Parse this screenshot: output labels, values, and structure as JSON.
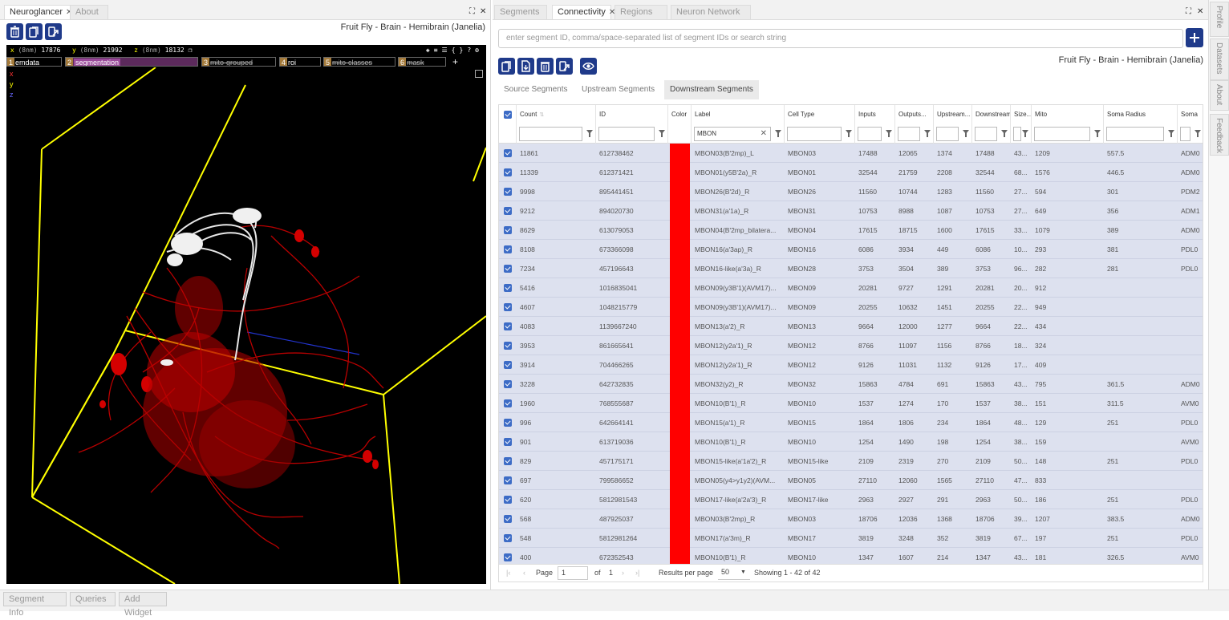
{
  "left": {
    "tabs": [
      {
        "label": "Neuroglancer",
        "active": true,
        "closable": true
      },
      {
        "label": "About",
        "active": false,
        "closable": false
      }
    ],
    "toolbar": [
      "trash-icon",
      "copy-icon",
      "share-icon"
    ],
    "dataset_title": "Fruit Fly - Brain - Hemibrain (Janelia)",
    "coords": {
      "x_label": "x",
      "x_unit": "(8nm)",
      "x_value": "17876",
      "y_label": "y",
      "y_unit": "(8nm)",
      "y_value": "21992",
      "z_label": "z",
      "z_unit": "(8nm)",
      "z_value": "18132"
    },
    "layers": [
      {
        "num": "1",
        "label": "emdata",
        "visible": true,
        "selected": false
      },
      {
        "num": "2",
        "label": "segmentation",
        "visible": true,
        "selected": true
      },
      {
        "num": "3",
        "label": "mito-grouped",
        "visible": false,
        "selected": false
      },
      {
        "num": "4",
        "label": "roi",
        "visible": true,
        "selected": false
      },
      {
        "num": "5",
        "label": "mito-classes",
        "visible": false,
        "selected": false
      },
      {
        "num": "6",
        "label": "mask",
        "visible": false,
        "selected": false
      }
    ],
    "add_layer": "+",
    "axes": {
      "x": "x",
      "y": "y",
      "z": "z"
    },
    "colors": {
      "bounding_box": "#ffff00",
      "neuron_red": "#d40000",
      "neuron_white": "#e8e8e8",
      "toolbar_blue": "#1f3a8a"
    }
  },
  "right": {
    "tabs": [
      {
        "label": "Segments",
        "active": false
      },
      {
        "label": "Connectivity",
        "active": true
      },
      {
        "label": "Regions",
        "active": false
      },
      {
        "label": "Neuron Network",
        "active": false
      }
    ],
    "search": {
      "placeholder": "enter segment ID, comma/space-separated list of segment IDs or search string"
    },
    "dataset_title": "Fruit Fly - Brain - Hemibrain (Janelia)",
    "subtabs": [
      "Source Segments",
      "Upstream Segments",
      "Downstream Segments"
    ],
    "active_subtab": 2,
    "columns": [
      "Count",
      "ID",
      "Color",
      "Label",
      "Cell Type",
      "Inputs",
      "Outputs...",
      "Upstream...",
      "Downstream",
      "Size...",
      "Mito",
      "Soma Radius",
      "Soma"
    ],
    "label_filter": "MBON",
    "rows": [
      [
        "11861",
        "612738462",
        "MBON03(B'2mp)_L",
        "MBON03",
        "17488",
        "12065",
        "1374",
        "17488",
        "43...",
        "1209",
        "557.5",
        "ADM0"
      ],
      [
        "11339",
        "612371421",
        "MBON01(y5B'2a)_R",
        "MBON01",
        "32544",
        "21759",
        "2208",
        "32544",
        "68...",
        "1576",
        "446.5",
        "ADM0"
      ],
      [
        "9998",
        "895441451",
        "MBON26(B'2d)_R",
        "MBON26",
        "11560",
        "10744",
        "1283",
        "11560",
        "27...",
        "594",
        "301",
        "PDM2"
      ],
      [
        "9212",
        "894020730",
        "MBON31(a'1a)_R",
        "MBON31",
        "10753",
        "8988",
        "1087",
        "10753",
        "27...",
        "649",
        "356",
        "ADM1"
      ],
      [
        "8629",
        "613079053",
        "MBON04(B'2mp_bilatera...",
        "MBON04",
        "17615",
        "18715",
        "1600",
        "17615",
        "33...",
        "1079",
        "389",
        "ADM0"
      ],
      [
        "8108",
        "673366098",
        "MBON16(a'3ap)_R",
        "MBON16",
        "6086",
        "3934",
        "449",
        "6086",
        "10...",
        "293",
        "381",
        "PDL0"
      ],
      [
        "7234",
        "457196643",
        "MBON16-like(a'3a)_R",
        "MBON28",
        "3753",
        "3504",
        "389",
        "3753",
        "96...",
        "282",
        "281",
        "PDL0"
      ],
      [
        "5416",
        "1016835041",
        "MBON09(y3B'1)(AVM17)...",
        "MBON09",
        "20281",
        "9727",
        "1291",
        "20281",
        "20...",
        "912",
        "",
        ""
      ],
      [
        "4607",
        "1048215779",
        "MBON09(y3B'1)(AVM17)...",
        "MBON09",
        "20255",
        "10632",
        "1451",
        "20255",
        "22...",
        "949",
        "",
        ""
      ],
      [
        "4083",
        "1139667240",
        "MBON13(a'2)_R",
        "MBON13",
        "9664",
        "12000",
        "1277",
        "9664",
        "22...",
        "434",
        "",
        ""
      ],
      [
        "3953",
        "861665641",
        "MBON12(y2a'1)_R",
        "MBON12",
        "8766",
        "11097",
        "1156",
        "8766",
        "18...",
        "324",
        "",
        ""
      ],
      [
        "3914",
        "704466265",
        "MBON12(y2a'1)_R",
        "MBON12",
        "9126",
        "11031",
        "1132",
        "9126",
        "17...",
        "409",
        "",
        ""
      ],
      [
        "3228",
        "642732835",
        "MBON32(y2)_R",
        "MBON32",
        "15863",
        "4784",
        "691",
        "15863",
        "43...",
        "795",
        "361.5",
        "ADM0"
      ],
      [
        "1960",
        "768555687",
        "MBON10(B'1)_R",
        "MBON10",
        "1537",
        "1274",
        "170",
        "1537",
        "38...",
        "151",
        "311.5",
        "AVM0"
      ],
      [
        "996",
        "642664141",
        "MBON15(a'1)_R",
        "MBON15",
        "1864",
        "1806",
        "234",
        "1864",
        "48...",
        "129",
        "251",
        "PDL0"
      ],
      [
        "901",
        "613719036",
        "MBON10(B'1)_R",
        "MBON10",
        "1254",
        "1490",
        "198",
        "1254",
        "38...",
        "159",
        "",
        "AVM0"
      ],
      [
        "829",
        "457175171",
        "MBON15-like(a'1a'2)_R",
        "MBON15-like",
        "2109",
        "2319",
        "270",
        "2109",
        "50...",
        "148",
        "251",
        "PDL0"
      ],
      [
        "697",
        "799586652",
        "MBON05(y4>y1y2)(AVM...",
        "MBON05",
        "27110",
        "12060",
        "1565",
        "27110",
        "47...",
        "833",
        "",
        ""
      ],
      [
        "620",
        "5812981543",
        "MBON17-like(a'2a'3)_R",
        "MBON17-like",
        "2963",
        "2927",
        "291",
        "2963",
        "50...",
        "186",
        "251",
        "PDL0"
      ],
      [
        "568",
        "487925037",
        "MBON03(B'2mp)_R",
        "MBON03",
        "18706",
        "12036",
        "1368",
        "18706",
        "39...",
        "1207",
        "383.5",
        "ADM0"
      ],
      [
        "548",
        "5812981264",
        "MBON17(a'3m)_R",
        "MBON17",
        "3819",
        "3248",
        "352",
        "3819",
        "67...",
        "197",
        "251",
        "PDL0"
      ],
      [
        "400",
        "672352543",
        "MBON10(B'1)_R",
        "MBON10",
        "1347",
        "1607",
        "214",
        "1347",
        "43...",
        "181",
        "326.5",
        "AVM0"
      ]
    ],
    "row_color": "#ff0000",
    "pager": {
      "page_label": "Page",
      "page_value": "1",
      "of_label": "of",
      "total_pages": "1",
      "per_page_label": "Results per page",
      "per_page_value": "50",
      "showing": "Showing 1 - 42 of 42"
    }
  },
  "bottom": [
    "Segment Info",
    "Queries",
    "Add Widget"
  ],
  "side_tabs": [
    "Profile",
    "Datasets",
    "About",
    "Feedback"
  ]
}
